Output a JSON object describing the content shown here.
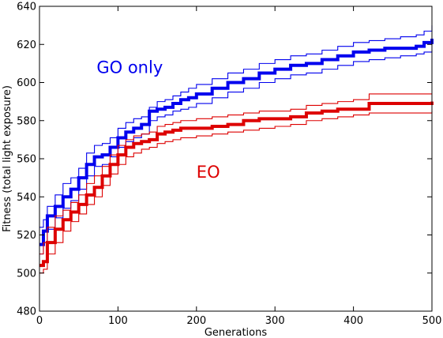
{
  "chart_data": {
    "type": "line",
    "title": "",
    "xlabel": "Generations",
    "ylabel": "Fitness (total light exposure)",
    "xlim": [
      0,
      500
    ],
    "ylim": [
      480,
      640
    ],
    "xticks": [
      0,
      100,
      200,
      300,
      400,
      500
    ],
    "yticks": [
      480,
      500,
      520,
      540,
      560,
      580,
      600,
      620,
      640
    ],
    "grid": false,
    "annotations": [
      {
        "text": "GO only",
        "x": 115,
        "y": 605,
        "color": "#0000ee"
      },
      {
        "text": "EO",
        "x": 215,
        "y": 550,
        "color": "#dd0000"
      }
    ],
    "series": [
      {
        "role": "mean",
        "color": "#0000ee",
        "x": [
          0,
          5,
          10,
          20,
          30,
          40,
          50,
          60,
          70,
          80,
          90,
          100,
          110,
          120,
          130,
          140,
          150,
          160,
          170,
          180,
          190,
          200,
          220,
          240,
          260,
          280,
          300,
          320,
          340,
          360,
          380,
          400,
          420,
          440,
          460,
          480,
          490,
          500
        ],
        "y": [
          515,
          522,
          530,
          535,
          540,
          544,
          550,
          557,
          561,
          562,
          566,
          571,
          574,
          576,
          578,
          585,
          586,
          587,
          589,
          591,
          592,
          594,
          597,
          600,
          602,
          605,
          607,
          609,
          610,
          612,
          614,
          616,
          617,
          618,
          618,
          619,
          621,
          623
        ]
      },
      {
        "role": "upper",
        "color": "#0000ee",
        "x": [
          0,
          5,
          10,
          20,
          30,
          40,
          50,
          60,
          70,
          80,
          90,
          100,
          110,
          120,
          130,
          140,
          150,
          160,
          170,
          180,
          190,
          200,
          220,
          240,
          260,
          280,
          300,
          320,
          340,
          360,
          380,
          400,
          420,
          440,
          460,
          480,
          490,
          500
        ],
        "y": [
          524,
          528,
          535,
          541,
          547,
          550,
          555,
          563,
          567,
          568,
          571,
          576,
          579,
          581,
          582,
          587,
          590,
          591,
          593,
          595,
          597,
          599,
          602,
          605,
          607,
          610,
          612,
          614,
          615,
          617,
          619,
          621,
          622,
          623,
          624,
          625,
          627,
          630
        ]
      },
      {
        "role": "lower",
        "color": "#0000ee",
        "x": [
          0,
          5,
          10,
          20,
          30,
          40,
          50,
          60,
          70,
          80,
          90,
          100,
          110,
          120,
          130,
          140,
          150,
          160,
          170,
          180,
          190,
          200,
          220,
          240,
          260,
          280,
          300,
          320,
          340,
          360,
          380,
          400,
          420,
          440,
          460,
          480,
          490,
          500
        ],
        "y": [
          510,
          516,
          523,
          529,
          534,
          538,
          544,
          551,
          556,
          557,
          561,
          566,
          569,
          571,
          573,
          580,
          582,
          583,
          585,
          586,
          587,
          589,
          592,
          595,
          597,
          600,
          602,
          604,
          605,
          607,
          609,
          611,
          612,
          613,
          614,
          615,
          616,
          617
        ]
      },
      {
        "role": "mean",
        "color": "#dd0000",
        "x": [
          0,
          5,
          10,
          20,
          30,
          40,
          50,
          60,
          70,
          80,
          90,
          100,
          110,
          120,
          130,
          140,
          150,
          160,
          170,
          180,
          200,
          220,
          240,
          260,
          280,
          300,
          320,
          340,
          360,
          380,
          400,
          420,
          440,
          460,
          480,
          500
        ],
        "y": [
          504,
          506,
          516,
          523,
          528,
          532,
          536,
          541,
          545,
          551,
          557,
          562,
          566,
          568,
          569,
          570,
          573,
          574,
          575,
          576,
          576,
          577,
          578,
          580,
          581,
          581,
          582,
          584,
          585,
          586,
          586,
          589,
          589,
          589,
          589,
          590
        ]
      },
      {
        "role": "upper",
        "color": "#dd0000",
        "x": [
          0,
          5,
          10,
          20,
          30,
          40,
          50,
          60,
          70,
          80,
          90,
          100,
          110,
          120,
          130,
          140,
          150,
          160,
          170,
          180,
          200,
          220,
          240,
          260,
          280,
          300,
          320,
          340,
          360,
          380,
          400,
          420,
          440,
          460,
          480,
          500
        ],
        "y": [
          510,
          516,
          524,
          530,
          533,
          537,
          541,
          547,
          551,
          556,
          562,
          567,
          570,
          572,
          573,
          574,
          577,
          578,
          579,
          580,
          581,
          582,
          583,
          584,
          585,
          585,
          586,
          588,
          589,
          590,
          591,
          594,
          594,
          594,
          594,
          594
        ]
      },
      {
        "role": "lower",
        "color": "#dd0000",
        "x": [
          0,
          5,
          10,
          20,
          30,
          40,
          50,
          60,
          70,
          80,
          90,
          100,
          110,
          120,
          130,
          140,
          150,
          160,
          170,
          180,
          200,
          220,
          240,
          260,
          280,
          300,
          320,
          340,
          360,
          380,
          400,
          420,
          440,
          460,
          480,
          500
        ],
        "y": [
          500,
          502,
          510,
          516,
          522,
          527,
          531,
          536,
          540,
          546,
          552,
          557,
          561,
          563,
          565,
          566,
          568,
          569,
          570,
          571,
          572,
          573,
          574,
          575,
          576,
          577,
          578,
          580,
          581,
          582,
          583,
          584,
          584,
          584,
          584,
          585
        ]
      }
    ]
  }
}
